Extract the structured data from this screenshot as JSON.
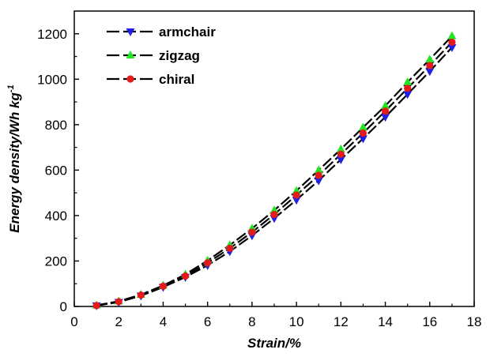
{
  "chart_data": {
    "type": "line",
    "xlabel": "Strain/%",
    "ylabel": "Energy density/Wh kg",
    "ylabel_superscript": "-1",
    "xlim": [
      0,
      18
    ],
    "ylim": [
      0,
      1300
    ],
    "xticks": [
      0,
      2,
      4,
      6,
      8,
      10,
      12,
      14,
      16,
      18
    ],
    "yticks": [
      0,
      200,
      400,
      600,
      800,
      1000,
      1200
    ],
    "grid": false,
    "legend_position": "top-left",
    "x": [
      1,
      2,
      3,
      4,
      5,
      6,
      7,
      8,
      9,
      10,
      11,
      12,
      13,
      14,
      15,
      16,
      17
    ],
    "series": [
      {
        "name": "armchair",
        "marker": "triangle-down",
        "color": "#1f1fe6",
        "values": [
          4,
          19,
          47,
          85,
          129,
          181,
          242,
          312,
          388,
          469,
          554,
          647,
          739,
          834,
          934,
          1035,
          1140
        ]
      },
      {
        "name": "zigzag",
        "marker": "triangle-up",
        "color": "#22e622",
        "values": [
          5,
          23,
          52,
          92,
          141,
          202,
          270,
          343,
          423,
          509,
          600,
          692,
          788,
          883,
          987,
          1087,
          1190
        ]
      },
      {
        "name": "chiral",
        "marker": "circle",
        "color": "#e61a1a",
        "values": [
          4,
          21,
          50,
          89,
          134,
          192,
          256,
          327,
          405,
          490,
          577,
          670,
          763,
          860,
          960,
          1060,
          1163
        ]
      }
    ]
  }
}
